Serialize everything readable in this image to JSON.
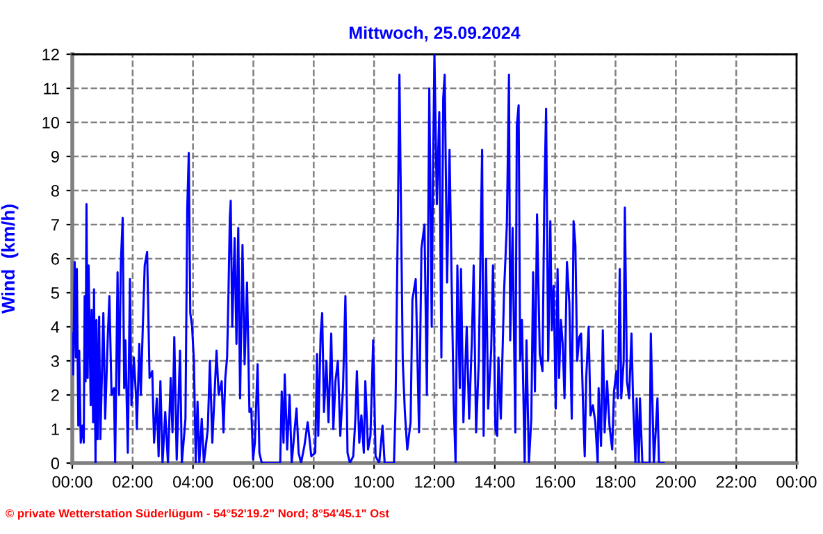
{
  "chart_data": {
    "type": "line",
    "title": "Mittwoch, 25.09.2024",
    "ylabel": "Wind  (km/h)",
    "xlim": [
      0,
      24
    ],
    "ylim": [
      0,
      12
    ],
    "xticks": [
      {
        "value": 0,
        "label": "00:00"
      },
      {
        "value": 2,
        "label": "02:00"
      },
      {
        "value": 4,
        "label": "04:00"
      },
      {
        "value": 6,
        "label": "06:00"
      },
      {
        "value": 8,
        "label": "08:00"
      },
      {
        "value": 10,
        "label": "10:00"
      },
      {
        "value": 12,
        "label": "12:00"
      },
      {
        "value": 14,
        "label": "14:00"
      },
      {
        "value": 16,
        "label": "16:00"
      },
      {
        "value": 18,
        "label": "18:00"
      },
      {
        "value": 20,
        "label": "20:00"
      },
      {
        "value": 22,
        "label": "22:00"
      },
      {
        "value": 24,
        "label": "00:00"
      }
    ],
    "yticks": [
      0,
      1,
      2,
      3,
      4,
      5,
      6,
      7,
      8,
      9,
      10,
      11,
      12
    ],
    "grid": true,
    "marker": "none",
    "line_style": "solid",
    "annotations": [
      "© private Wetterstation Süderlügum - 54°52'19.2\" Nord; 8°54'45.1\" Ost"
    ],
    "series": [
      {
        "color": "#0000ff",
        "x": [
          0,
          0.03,
          0.08,
          0.12,
          0.15,
          0.2,
          0.23,
          0.28,
          0.34,
          0.38,
          0.41,
          0.44,
          0.47,
          0.51,
          0.54,
          0.61,
          0.64,
          0.69,
          0.72,
          0.77,
          0.8,
          0.84,
          0.89,
          0.93,
          1.03,
          1.09,
          1.18,
          1.23,
          1.3,
          1.38,
          1.42,
          1.5,
          1.55,
          1.61,
          1.67,
          1.72,
          1.76,
          1.84,
          1.91,
          1.96,
          2.04,
          2.11,
          2.14,
          2.22,
          2.27,
          2.33,
          2.4,
          2.48,
          2.56,
          2.65,
          2.71,
          2.8,
          2.86,
          2.92,
          2.99,
          3.08,
          3.17,
          3.26,
          3.32,
          3.38,
          3.46,
          3.57,
          3.63,
          3.75,
          3.81,
          3.86,
          3.91,
          3.97,
          4.03,
          4.09,
          4.15,
          4.21,
          4.29,
          4.36,
          4.49,
          4.56,
          4.64,
          4.78,
          4.85,
          4.95,
          5.01,
          5.07,
          5.13,
          5.18,
          5.22,
          5.25,
          5.3,
          5.38,
          5.44,
          5.5,
          5.56,
          5.64,
          5.71,
          5.79,
          5.87,
          5.93,
          5.99,
          6.05,
          6.14,
          6.2,
          6.28,
          6.89,
          6.94,
          7.0,
          7.04,
          7.12,
          7.2,
          7.27,
          7.43,
          7.5,
          7.58,
          7.69,
          7.8,
          7.92,
          8.05,
          8.11,
          8.15,
          8.23,
          8.28,
          8.34,
          8.42,
          8.49,
          8.58,
          8.65,
          8.72,
          8.8,
          8.88,
          8.97,
          9.05,
          9.12,
          9.2,
          9.31,
          9.38,
          9.43,
          9.51,
          9.58,
          9.66,
          9.71,
          9.8,
          9.88,
          9.97,
          10.05,
          10.17,
          10.28,
          10.35,
          10.66,
          10.71,
          10.79,
          10.84,
          10.95,
          11.02,
          11.1,
          11.21,
          11.27,
          11.38,
          11.49,
          11.57,
          11.67,
          11.75,
          11.83,
          11.91,
          11.95,
          12.0,
          12.08,
          12.16,
          12.23,
          12.29,
          12.34,
          12.42,
          12.5,
          12.57,
          12.64,
          12.7,
          12.76,
          12.84,
          12.88,
          12.96,
          13.07,
          13.15,
          13.24,
          13.3,
          13.38,
          13.47,
          13.58,
          13.63,
          13.71,
          13.78,
          13.88,
          13.94,
          14.02,
          14.08,
          14.12,
          14.2,
          14.31,
          14.4,
          14.47,
          14.51,
          14.59,
          14.68,
          14.73,
          14.79,
          14.84,
          14.9,
          14.99,
          15.05,
          15.13,
          15.21,
          15.27,
          15.33,
          15.4,
          15.49,
          15.58,
          15.64,
          15.7,
          15.77,
          15.84,
          15.89,
          15.95,
          16.02,
          16.08,
          16.13,
          16.19,
          16.25,
          16.31,
          16.39,
          16.47,
          16.55,
          16.61,
          16.67,
          16.73,
          16.8,
          16.86,
          16.94,
          16.98,
          17.03,
          17.11,
          17.17,
          17.25,
          17.33,
          17.41,
          17.44,
          17.52,
          17.58,
          17.64,
          17.72,
          17.8,
          17.89,
          17.95,
          18.03,
          18.08,
          18.14,
          18.19,
          18.27,
          18.31,
          18.38,
          18.45,
          18.53,
          18.58,
          18.66,
          18.7,
          18.77,
          18.81,
          18.89,
          19.13,
          19.17,
          19.22,
          19.27,
          19.33,
          19.39,
          19.44,
          19.6
        ],
        "values": [
          3.8,
          2.6,
          5.9,
          3.1,
          5.7,
          1.1,
          3.3,
          0.6,
          1.1,
          0.6,
          4.9,
          2.4,
          7.6,
          2.5,
          5.8,
          1.7,
          4.5,
          1.2,
          5.1,
          0.0,
          4.2,
          0.7,
          4.3,
          0.7,
          4.4,
          1.3,
          3.8,
          4.9,
          2.0,
          2.2,
          0.0,
          5.6,
          2.0,
          5.9,
          7.2,
          2.2,
          3.6,
          0.3,
          5.4,
          1.7,
          3.1,
          2.0,
          1.0,
          3.5,
          2.0,
          3.8,
          5.8,
          6.2,
          2.5,
          2.7,
          0.6,
          1.9,
          0.2,
          2.4,
          0.0,
          1.5,
          0.0,
          2.5,
          0.9,
          3.7,
          0.1,
          3.3,
          0.0,
          1.3,
          7.5,
          9.1,
          4.4,
          4.0,
          3.0,
          0.0,
          1.8,
          0.0,
          1.3,
          0.0,
          1.0,
          3.0,
          0.6,
          3.3,
          2.0,
          2.4,
          0.9,
          2.5,
          3.1,
          5.2,
          7.2,
          7.7,
          4.0,
          6.6,
          3.5,
          6.9,
          1.9,
          6.4,
          2.9,
          5.3,
          1.5,
          1.6,
          0.1,
          0.6,
          2.9,
          0.3,
          0.0,
          0.0,
          2.1,
          0.6,
          2.6,
          0.4,
          2.0,
          0.0,
          1.6,
          0.3,
          0.0,
          0.5,
          1.2,
          0.2,
          0.3,
          3.2,
          0.8,
          3.8,
          4.4,
          1.5,
          3.0,
          1.2,
          3.8,
          1.0,
          2.4,
          3.0,
          0.8,
          2.2,
          4.9,
          0.3,
          0.0,
          0.2,
          1.3,
          2.7,
          0.6,
          1.4,
          0.3,
          2.4,
          0.4,
          0.8,
          3.6,
          0.2,
          0.0,
          1.1,
          0.0,
          0.0,
          1.6,
          7.3,
          11.4,
          3.0,
          1.5,
          0.4,
          1.2,
          4.8,
          5.4,
          0.9,
          6.3,
          7.0,
          2.0,
          11.0,
          4.0,
          8.3,
          12.0,
          7.6,
          10.3,
          3.1,
          10.7,
          11.4,
          5.3,
          9.2,
          5.3,
          1.7,
          0.0,
          5.8,
          2.2,
          5.7,
          1.2,
          4.0,
          1.3,
          3.6,
          5.8,
          0.9,
          3.0,
          9.2,
          0.8,
          6.0,
          1.6,
          3.3,
          5.8,
          1.0,
          0.8,
          3.1,
          1.3,
          5.1,
          7.0,
          11.4,
          3.6,
          6.9,
          0.9,
          9.9,
          10.5,
          3.0,
          4.2,
          0.0,
          3.6,
          0.0,
          1.3,
          5.6,
          2.1,
          7.3,
          3.2,
          2.7,
          7.7,
          10.4,
          3.0,
          7.1,
          3.9,
          5.2,
          1.6,
          5.7,
          2.5,
          4.2,
          3.5,
          1.9,
          5.9,
          4.7,
          1.3,
          7.1,
          6.4,
          3.0,
          3.7,
          3.8,
          1.2,
          0.2,
          2.5,
          4.0,
          1.4,
          1.7,
          1.2,
          0.0,
          2.2,
          0.5,
          3.9,
          0.9,
          2.4,
          1.1,
          0.4,
          2.1,
          2.7,
          1.9,
          5.7,
          1.9,
          3.0,
          7.5,
          2.4,
          1.9,
          3.8,
          1.9,
          0.0,
          1.9,
          0.0,
          1.9,
          0.0,
          0.0,
          3.8,
          1.9,
          0.0,
          0.9,
          1.9,
          0.0,
          0.0
        ]
      }
    ]
  }
}
